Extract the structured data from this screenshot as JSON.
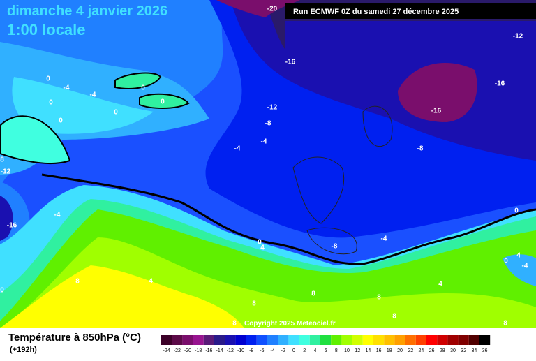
{
  "header": {
    "title": "dimanche 4 janvier 2026",
    "time": "1:00 locale",
    "run": "Run ECMWF 0Z du samedi 27 décembre 2025"
  },
  "contour_labels": [
    -20,
    -12,
    -16,
    -16,
    0,
    -4,
    -4,
    0,
    0,
    0,
    0,
    -12,
    -16,
    0,
    -8,
    -4,
    -4,
    -8,
    8,
    -12,
    -4,
    -16,
    0,
    0,
    4,
    -8,
    -4,
    4,
    0,
    -4,
    8,
    4,
    4,
    0,
    8,
    8,
    8,
    8,
    8,
    8
  ],
  "footer": {
    "variable": "Température à 850hPa (°C)",
    "lead": "(+192h)",
    "copyright": "Copyright 2025 Meteociel.fr"
  },
  "scale": {
    "labels": [
      -24,
      -22,
      -20,
      -18,
      -16,
      -14,
      -12,
      -10,
      -8,
      -6,
      -4,
      -2,
      0,
      2,
      4,
      6,
      8,
      10,
      12,
      14,
      16,
      18,
      20,
      22,
      24,
      26,
      28,
      30,
      32,
      34,
      36
    ],
    "colors": [
      "#3c0028",
      "#5c0a48",
      "#7a0e6c",
      "#981490",
      "#5a1a78",
      "#2a1a8a",
      "#1a10b0",
      "#0000d0",
      "#0020f0",
      "#1050ff",
      "#2080ff",
      "#30b0ff",
      "#40e0ff",
      "#40ffe0",
      "#30f0a0",
      "#20e040",
      "#60f000",
      "#a0ff00",
      "#d0ff00",
      "#ffff00",
      "#ffe000",
      "#ffc000",
      "#ffa000",
      "#ff7000",
      "#ff4000",
      "#ff0000",
      "#d00000",
      "#a00000",
      "#800000",
      "#500000",
      "#000000"
    ]
  }
}
